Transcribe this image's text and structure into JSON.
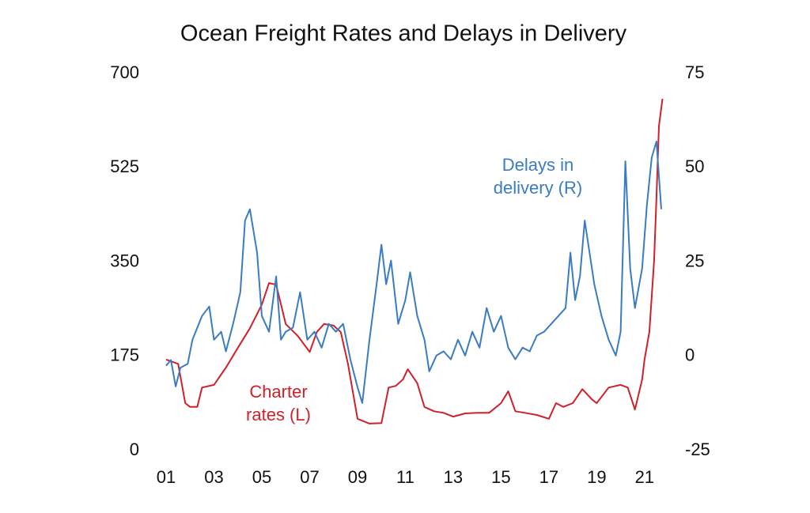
{
  "chart_data": {
    "type": "line",
    "title": "Ocean Freight Rates and Delays in Delivery",
    "xlim": [
      2000.8,
      2021.8
    ],
    "xticks": [
      {
        "value": 2001,
        "label": "01"
      },
      {
        "value": 2003,
        "label": "03"
      },
      {
        "value": 2005,
        "label": "05"
      },
      {
        "value": 2007,
        "label": "07"
      },
      {
        "value": 2009,
        "label": "09"
      },
      {
        "value": 2011,
        "label": "11"
      },
      {
        "value": 2013,
        "label": "13"
      },
      {
        "value": 2015,
        "label": "15"
      },
      {
        "value": 2017,
        "label": "17"
      },
      {
        "value": 2019,
        "label": "19"
      },
      {
        "value": 2021,
        "label": "21"
      }
    ],
    "ylim": [
      0,
      700
    ],
    "yticks": [
      0,
      175,
      350,
      525,
      700
    ],
    "y2lim": [
      -25,
      75
    ],
    "y2ticks": [
      -25,
      0,
      25,
      50,
      75
    ],
    "grid": false,
    "series": [
      {
        "name": "Charter rates (L)",
        "color": "#d0202a",
        "axis": "y",
        "x": [
          2001.0,
          2001.5,
          2001.8,
          2002.0,
          2002.3,
          2002.5,
          2003.0,
          2003.5,
          2004.0,
          2004.5,
          2005.0,
          2005.3,
          2005.6,
          2006.0,
          2006.5,
          2007.0,
          2007.3,
          2007.6,
          2008.0,
          2008.3,
          2008.6,
          2009.0,
          2009.5,
          2010.0,
          2010.3,
          2010.6,
          2010.9,
          2011.1,
          2011.5,
          2011.8,
          2012.2,
          2012.6,
          2013.0,
          2013.5,
          2014.0,
          2014.5,
          2015.0,
          2015.3,
          2015.6,
          2016.0,
          2016.5,
          2017.0,
          2017.3,
          2017.6,
          2018.0,
          2018.4,
          2018.8,
          2019.0,
          2019.5,
          2020.0,
          2020.3,
          2020.6,
          2020.9,
          2021.0,
          2021.2,
          2021.4,
          2021.5,
          2021.6,
          2021.75
        ],
        "values": [
          169,
          161,
          88,
          81,
          81,
          117,
          122,
          154,
          191,
          227,
          271,
          311,
          308,
          235,
          213,
          183,
          220,
          235,
          232,
          220,
          161,
          59,
          50,
          51,
          117,
          120,
          132,
          151,
          125,
          81,
          73,
          70,
          63,
          69,
          70,
          70,
          88,
          110,
          73,
          70,
          66,
          59,
          88,
          81,
          88,
          114,
          95,
          88,
          117,
          122,
          117,
          76,
          132,
          169,
          220,
          352,
          470,
          602,
          653
        ]
      },
      {
        "name": "Delays in delivery (R)",
        "color": "#3a7cc1",
        "axis": "y2",
        "x": [
          2001.0,
          2001.2,
          2001.4,
          2001.6,
          2001.9,
          2002.1,
          2002.5,
          2002.8,
          2003.0,
          2003.3,
          2003.5,
          2003.8,
          2004.1,
          2004.3,
          2004.5,
          2004.8,
          2005.0,
          2005.3,
          2005.6,
          2005.8,
          2006.0,
          2006.3,
          2006.6,
          2006.9,
          2007.2,
          2007.5,
          2007.8,
          2008.1,
          2008.4,
          2008.7,
          2009.0,
          2009.2,
          2009.5,
          2009.8,
          2010.0,
          2010.2,
          2010.4,
          2010.7,
          2011.0,
          2011.2,
          2011.5,
          2011.8,
          2012.0,
          2012.3,
          2012.6,
          2012.9,
          2013.2,
          2013.5,
          2013.8,
          2014.1,
          2014.4,
          2014.7,
          2015.0,
          2015.3,
          2015.6,
          2015.9,
          2016.2,
          2016.5,
          2016.8,
          2017.1,
          2017.4,
          2017.7,
          2017.9,
          2018.1,
          2018.3,
          2018.5,
          2018.7,
          2018.9,
          2019.2,
          2019.5,
          2019.8,
          2020.0,
          2020.2,
          2020.4,
          2020.6,
          2020.9,
          2021.1,
          2021.3,
          2021.5,
          2021.7
        ],
        "values": [
          -2.5,
          -1,
          -8,
          -3,
          -2,
          4.4,
          10.7,
          13.2,
          4.4,
          6.5,
          1.3,
          8.6,
          17,
          36,
          39,
          27.5,
          10.7,
          6.5,
          21.2,
          4.4,
          6.5,
          7.6,
          17,
          4.4,
          6.5,
          2.3,
          8.6,
          6.5,
          8.6,
          -0.8,
          -8.2,
          -12.4,
          4.4,
          19.1,
          29.6,
          19.1,
          25.4,
          8.6,
          14.9,
          22.3,
          10.7,
          4.4,
          -4,
          0.2,
          1.3,
          -0.8,
          4.4,
          0.2,
          6.5,
          2.3,
          12.8,
          6.5,
          10.7,
          2.3,
          -0.8,
          2.3,
          1.3,
          5.5,
          6.5,
          8.6,
          10.7,
          12.8,
          27.5,
          14.9,
          21.2,
          36,
          27.5,
          19.1,
          10.7,
          4.4,
          0.2,
          6.5,
          51.7,
          23.3,
          12.8,
          23.3,
          40.1,
          52.7,
          57,
          39
        ]
      }
    ],
    "annotations": [
      {
        "lines": [
          "Delays in",
          "delivery (R)"
        ],
        "color": "#3a7cc1"
      },
      {
        "lines": [
          "Charter",
          "rates (L)"
        ],
        "color": "#d0202a"
      }
    ]
  }
}
